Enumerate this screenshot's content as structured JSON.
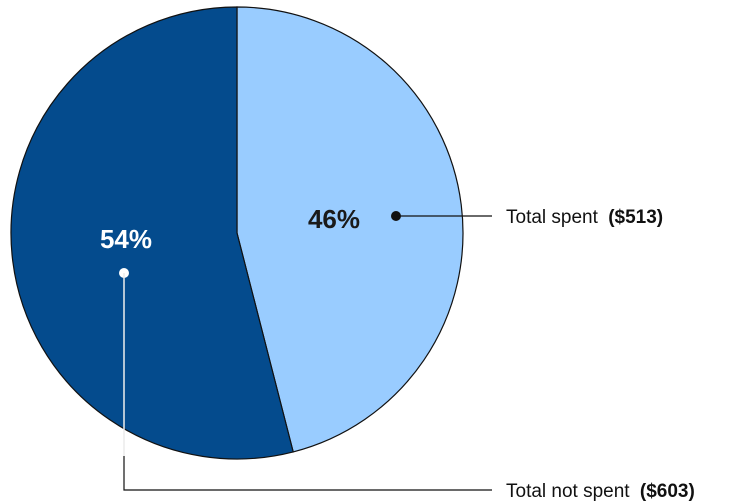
{
  "chart_data": {
    "type": "pie",
    "slices": [
      {
        "label": "Total spent",
        "amount": "($513)",
        "percent_label": "46%",
        "value": 46,
        "color": "#99ccff",
        "label_color": "#1a1a1a"
      },
      {
        "label": "Total not spent",
        "amount": "($603)",
        "percent_label": "54%",
        "value": 54,
        "color": "#044b8d",
        "label_color": "#ffffff"
      }
    ],
    "start_angle": "12 o'clock",
    "direction": "clockwise",
    "outline_color": "#111111",
    "legend": "callouts-right"
  }
}
